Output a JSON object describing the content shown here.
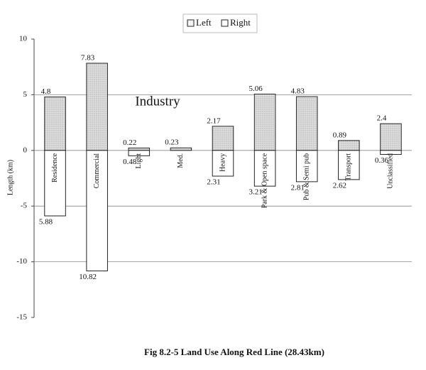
{
  "chart_data": {
    "type": "bar",
    "title": "Fig 8.2-5 Land Use Along Red Line (28.43km)",
    "y_label": "Length (km)",
    "annotation": "Industry",
    "categories": [
      "Residence",
      "Commercial",
      "Light",
      "Med.",
      "Heavy",
      "Park & Open space",
      "Pub & Semi pub",
      "Transport",
      "Unclassified"
    ],
    "series": [
      {
        "name": "Left",
        "color": "#dcdcdc",
        "values": [
          4.8,
          7.83,
          0.22,
          0.23,
          2.17,
          5.06,
          4.83,
          0.89,
          2.4
        ]
      },
      {
        "name": "Right",
        "color": "#ffffff",
        "values": [
          -5.88,
          -10.82,
          -0.48,
          null,
          -2.31,
          -3.21,
          -2.81,
          -2.62,
          -0.36
        ],
        "value_labels": [
          "5.88",
          "10.82",
          "0.48",
          null,
          "2.31",
          "3.21",
          "2.81",
          "2.62",
          "0.36"
        ]
      }
    ],
    "ylim": [
      -15,
      10
    ],
    "yticks": [
      -15,
      -10,
      -5,
      0,
      5,
      10
    ],
    "grid": true,
    "legend": "top"
  }
}
